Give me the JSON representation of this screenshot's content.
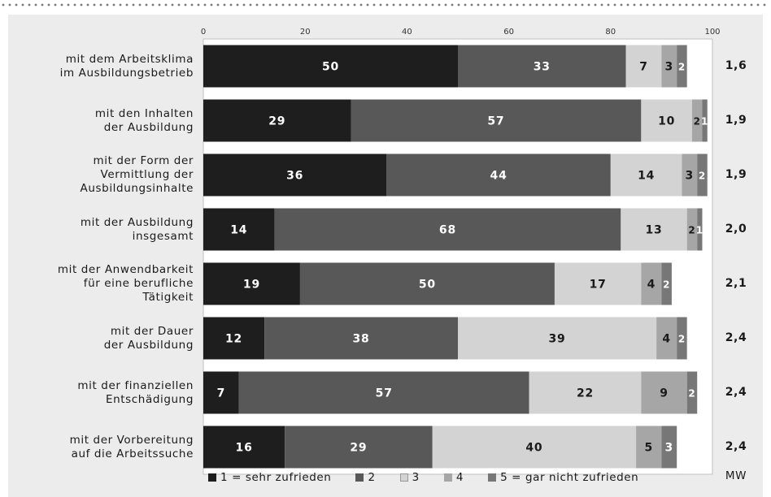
{
  "chart_data": {
    "type": "bar",
    "orientation": "horizontal",
    "stacked": true,
    "xlim": [
      0,
      100
    ],
    "xticks": [
      0,
      20,
      40,
      60,
      80,
      100
    ],
    "categories": [
      [
        "mit dem Arbeitsklima",
        "im Ausbildungsbetrieb"
      ],
      [
        "mit den Inhalten",
        "der Ausbildung"
      ],
      [
        "mit der Form der",
        "Vermittlung der",
        "Ausbildungsinhalte"
      ],
      [
        "mit der Ausbildung",
        "insgesamt"
      ],
      [
        "mit der Anwendbarkeit",
        "für eine berufliche",
        "Tätigkeit"
      ],
      [
        "mit der Dauer",
        "der Ausbildung"
      ],
      [
        "mit der finanziellen",
        "Entschädigung"
      ],
      [
        "mit der Vorbereitung",
        "auf die Arbeitssuche"
      ]
    ],
    "series": [
      {
        "name": "1 = sehr zufrieden",
        "color": "#1e1e1e",
        "values": [
          50,
          29,
          36,
          14,
          19,
          12,
          7,
          16
        ]
      },
      {
        "name": "2",
        "color": "#585858",
        "values": [
          33,
          57,
          44,
          68,
          50,
          38,
          57,
          29
        ]
      },
      {
        "name": "3",
        "color": "#d3d3d3",
        "values": [
          7,
          10,
          14,
          13,
          17,
          39,
          22,
          40
        ]
      },
      {
        "name": "4",
        "color": "#a6a6a6",
        "values": [
          3,
          2,
          3,
          2,
          4,
          4,
          9,
          5
        ]
      },
      {
        "name": "5 = gar nicht zufrieden",
        "color": "#777777",
        "values": [
          2,
          1,
          2,
          1,
          2,
          2,
          2,
          3
        ]
      }
    ],
    "mw_label": "MW",
    "mw_values": [
      "1,6",
      "1,9",
      "1,9",
      "2,0",
      "2,1",
      "2,4",
      "2,4",
      "2,4"
    ]
  }
}
